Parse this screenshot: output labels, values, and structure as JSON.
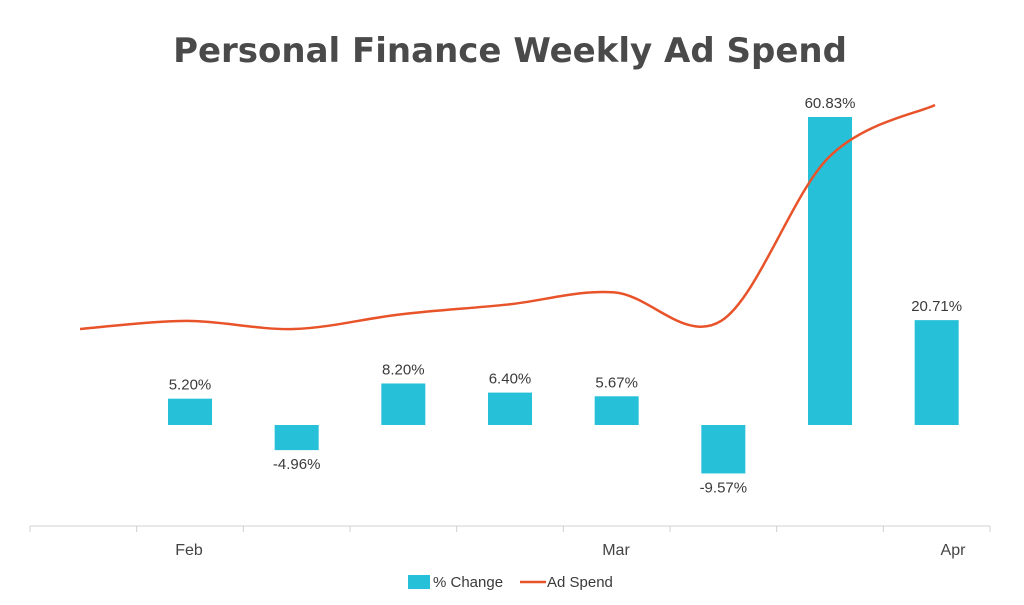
{
  "chart_data": {
    "type": "bar",
    "title": "Personal Finance Weekly Ad Spend",
    "x_tick_labels": [
      "Feb",
      "Mar",
      "Apr"
    ],
    "series": [
      {
        "name": "% Change",
        "type": "bar",
        "values": [
          5.2,
          -4.96,
          8.2,
          6.4,
          5.67,
          -9.57,
          60.83,
          20.71
        ],
        "labels": [
          "5.20%",
          "-4.96%",
          "8.20%",
          "6.40%",
          "5.67%",
          "-9.57%",
          "60.83%",
          "20.71%"
        ],
        "color": "#26C0D8"
      },
      {
        "name": "Ad Spend",
        "type": "line",
        "values": [
          1.0,
          1.1,
          1.0,
          1.18,
          1.3,
          1.45,
          1.1,
          3.1,
          3.75
        ],
        "color": "#E8532A"
      }
    ],
    "legend": "bottom",
    "grid": false
  }
}
